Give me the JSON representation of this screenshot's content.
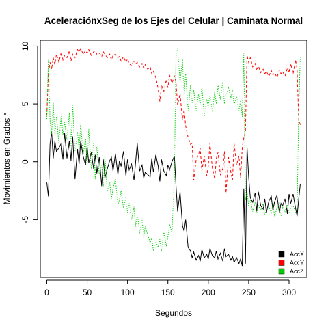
{
  "chart_data": {
    "type": "line",
    "title": "AceleraciónxSeg de los Ejes del Celular | Caminata Normal",
    "xlabel": "Segundos",
    "ylabel": "Movimientos en Grados °",
    "xlim": [
      -8,
      322
    ],
    "ylim": [
      -10,
      10.5
    ],
    "xticks": [
      0,
      50,
      100,
      150,
      200,
      250,
      300
    ],
    "yticks": [
      -5,
      0,
      5,
      10
    ],
    "grid": false,
    "legend_position": "bottom-right",
    "series": [
      {
        "name": "AccX",
        "color": "#000000",
        "dash": "solid",
        "x": [
          0,
          2,
          4,
          6,
          8,
          10,
          12,
          15,
          18,
          20,
          22,
          25,
          28,
          30,
          32,
          35,
          38,
          40,
          42,
          45,
          48,
          50,
          52,
          55,
          58,
          60,
          62,
          65,
          68,
          70,
          72,
          75,
          78,
          80,
          82,
          85,
          88,
          90,
          92,
          95,
          98,
          100,
          102,
          105,
          108,
          110,
          112,
          115,
          118,
          120,
          122,
          125,
          128,
          130,
          132,
          135,
          138,
          140,
          142,
          145,
          148,
          150,
          152,
          155,
          158,
          160,
          162,
          165,
          168,
          170,
          172,
          175,
          178,
          180,
          182,
          185,
          188,
          190,
          192,
          195,
          198,
          200,
          202,
          205,
          208,
          210,
          212,
          215,
          218,
          220,
          222,
          225,
          228,
          230,
          232,
          235,
          238,
          240,
          242,
          244,
          246,
          248,
          250,
          252,
          255,
          258,
          260,
          262,
          265,
          268,
          270,
          272,
          275,
          278,
          280,
          282,
          285,
          288,
          290,
          292,
          295,
          298,
          300,
          302,
          305,
          308,
          310,
          312,
          314
        ],
        "y": [
          -1.8,
          -3.0,
          1.5,
          2.6,
          0.3,
          1.8,
          0.9,
          1.2,
          1.6,
          0.2,
          2.5,
          0.3,
          1.8,
          0.1,
          2.2,
          -1.5,
          1.1,
          -0.2,
          1.8,
          0.5,
          -0.3,
          1.3,
          -0.1,
          0.8,
          -0.6,
          0.6,
          -1.0,
          0.4,
          -2.1,
          0.2,
          -1.4,
          -0.6,
          0.1,
          0.4,
          -0.8,
          0.7,
          -1.1,
          0.1,
          -0.4,
          0.9,
          -1.2,
          0.2,
          -0.7,
          -0.2,
          -1.6,
          0.0,
          1.6,
          -0.8,
          -0.3,
          -1.4,
          -0.9,
          -1.1,
          -1.3,
          0.3,
          -0.9,
          0.6,
          -0.4,
          -1.7,
          0.2,
          -0.8,
          -1.2,
          -0.3,
          -0.7,
          0.0,
          0.5,
          -2.0,
          -4.3,
          -2.6,
          -5.5,
          -6.0,
          -5.0,
          -7.4,
          -7.7,
          -8.3,
          -7.8,
          -8.5,
          -8.1,
          -8.6,
          -7.6,
          -8.3,
          -8.0,
          -8.4,
          -7.5,
          -8.1,
          -8.3,
          -7.7,
          -8.4,
          -7.9,
          -8.6,
          -7.5,
          -8.2,
          -8.0,
          -8.5,
          -8.2,
          -8.7,
          -8.3,
          -8.8,
          -8.4,
          -9.0,
          -2.3,
          -8.8,
          1.3,
          -1.3,
          -3.1,
          -3.5,
          -2.7,
          -4.3,
          -2.6,
          -3.8,
          -4.1,
          -3.2,
          -4.4,
          -3.4,
          -3.0,
          -4.2,
          -3.5,
          -2.9,
          -4.4,
          -3.6,
          -3.8,
          -3.2,
          -4.5,
          -2.8,
          -3.6,
          -2.8,
          -4.0,
          -4.7,
          -3.2,
          -1.9
        ]
      },
      {
        "name": "AccY",
        "color": "#ff0000",
        "dash": "dashed",
        "x": [
          0,
          2,
          4,
          6,
          8,
          10,
          12,
          15,
          18,
          20,
          22,
          25,
          28,
          30,
          32,
          35,
          38,
          40,
          42,
          45,
          48,
          50,
          52,
          55,
          58,
          60,
          62,
          65,
          68,
          70,
          72,
          75,
          78,
          80,
          82,
          85,
          88,
          90,
          92,
          95,
          98,
          100,
          102,
          105,
          108,
          110,
          112,
          115,
          118,
          120,
          122,
          125,
          128,
          130,
          132,
          135,
          138,
          140,
          142,
          145,
          148,
          150,
          152,
          155,
          158,
          160,
          162,
          165,
          168,
          170,
          172,
          175,
          178,
          180,
          182,
          185,
          188,
          190,
          192,
          195,
          198,
          200,
          202,
          205,
          208,
          210,
          212,
          215,
          218,
          220,
          222,
          225,
          228,
          230,
          232,
          235,
          238,
          240,
          242,
          244,
          246,
          248,
          250,
          252,
          255,
          258,
          260,
          262,
          265,
          268,
          270,
          272,
          275,
          278,
          280,
          282,
          285,
          288,
          290,
          292,
          295,
          298,
          300,
          302,
          305,
          308,
          310,
          312,
          314
        ],
        "y": [
          4.0,
          7.6,
          8.6,
          8.0,
          9.0,
          8.4,
          9.3,
          8.6,
          9.5,
          8.8,
          9.2,
          9.0,
          9.6,
          8.7,
          9.3,
          9.0,
          9.7,
          9.5,
          9.8,
          9.3,
          9.6,
          9.4,
          9.7,
          9.2,
          9.5,
          9.6,
          9.3,
          9.4,
          9.1,
          9.5,
          9.3,
          9.0,
          9.3,
          8.8,
          9.2,
          9.3,
          9.0,
          9.1,
          8.7,
          9.1,
          8.6,
          8.9,
          8.5,
          8.3,
          8.8,
          8.4,
          8.6,
          8.2,
          8.5,
          8.1,
          8.4,
          8.0,
          8.2,
          7.6,
          7.8,
          7.3,
          6.3,
          5.2,
          6.6,
          6.1,
          7.1,
          6.4,
          7.5,
          6.8,
          7.4,
          6.9,
          4.9,
          5.9,
          3.6,
          4.5,
          3.1,
          2.1,
          1.5,
          1.6,
          -1.6,
          0.2,
          0.6,
          1.2,
          -0.8,
          0.5,
          -1.2,
          -0.4,
          1.6,
          -0.5,
          -1.5,
          0.3,
          0.8,
          -1.1,
          -0.6,
          0.9,
          -2.7,
          0.4,
          -0.9,
          -1.6,
          1.6,
          -0.3,
          0.5,
          -1.4,
          1.2,
          2.1,
          2.6,
          9.2,
          8.6,
          9.0,
          8.2,
          8.5,
          7.9,
          8.3,
          7.7,
          8.0,
          7.6,
          7.8,
          7.4,
          7.9,
          7.5,
          7.7,
          7.3,
          7.9,
          7.6,
          7.8,
          7.4,
          8.1,
          7.7,
          8.5,
          7.6,
          8.8,
          8.0,
          3.6,
          3.2
        ]
      },
      {
        "name": "AccZ",
        "color": "#00cc00",
        "dash": "dotted",
        "x": [
          0,
          2,
          4,
          6,
          8,
          10,
          12,
          15,
          18,
          20,
          22,
          25,
          28,
          30,
          32,
          35,
          38,
          40,
          42,
          45,
          48,
          50,
          52,
          55,
          58,
          60,
          62,
          65,
          68,
          70,
          72,
          75,
          78,
          80,
          82,
          85,
          88,
          90,
          92,
          95,
          98,
          100,
          102,
          105,
          108,
          110,
          112,
          115,
          118,
          120,
          122,
          125,
          128,
          130,
          132,
          135,
          138,
          140,
          142,
          145,
          148,
          150,
          152,
          155,
          158,
          160,
          162,
          165,
          168,
          170,
          172,
          175,
          178,
          180,
          182,
          185,
          188,
          190,
          192,
          195,
          198,
          200,
          202,
          205,
          208,
          210,
          212,
          215,
          218,
          220,
          222,
          225,
          228,
          230,
          232,
          235,
          238,
          240,
          242,
          244,
          246,
          248,
          250,
          252,
          255,
          258,
          260,
          262,
          265,
          268,
          270,
          272,
          275,
          278,
          280,
          282,
          285,
          288,
          290,
          292,
          295,
          298,
          300,
          302,
          305,
          308,
          310,
          312,
          314
        ],
        "y": [
          3.7,
          8.8,
          3.6,
          2.4,
          5.1,
          2.2,
          3.9,
          1.6,
          4.1,
          2.3,
          3.4,
          1.9,
          4.2,
          1.3,
          4.9,
          0.9,
          2.6,
          1.1,
          3.2,
          0.6,
          2.0,
          -0.3,
          2.8,
          -0.6,
          1.7,
          -1.5,
          1.3,
          -1.1,
          -0.2,
          -2.2,
          0.5,
          -2.6,
          -1.8,
          -3.2,
          -2.3,
          -1.5,
          -3.7,
          -3.3,
          -2.5,
          -4.0,
          -3.1,
          -4.4,
          -3.6,
          -5.0,
          -3.9,
          -5.6,
          -4.4,
          -6.2,
          -5.0,
          -6.5,
          -5.6,
          -6.3,
          -7.0,
          -6.6,
          -7.7,
          -6.9,
          -7.4,
          -6.7,
          -7.7,
          -6.1,
          -7.3,
          -6.5,
          -5.4,
          -6.1,
          -1.3,
          9.0,
          9.8,
          6.9,
          8.9,
          5.7,
          7.6,
          4.4,
          6.6,
          5.1,
          6.2,
          4.3,
          5.9,
          4.9,
          6.5,
          3.9,
          5.4,
          4.7,
          5.9,
          4.3,
          6.1,
          5.0,
          6.6,
          5.4,
          6.9,
          5.0,
          5.8,
          6.4,
          5.5,
          6.2,
          4.9,
          5.7,
          4.4,
          5.3,
          3.9,
          9.4,
          -3.3,
          -2.6,
          -3.8,
          -3.3,
          -4.3,
          -3.5,
          -4.5,
          -3.8,
          -4.2,
          -3.6,
          -4.6,
          -4.0,
          -3.9,
          -4.4,
          -3.5,
          -4.7,
          -4.0,
          -3.6,
          -4.8,
          -3.9,
          -4.3,
          -3.7,
          -4.5,
          -4.0,
          -3.8,
          -4.4,
          -4.1,
          4.5,
          9.2
        ]
      }
    ]
  }
}
